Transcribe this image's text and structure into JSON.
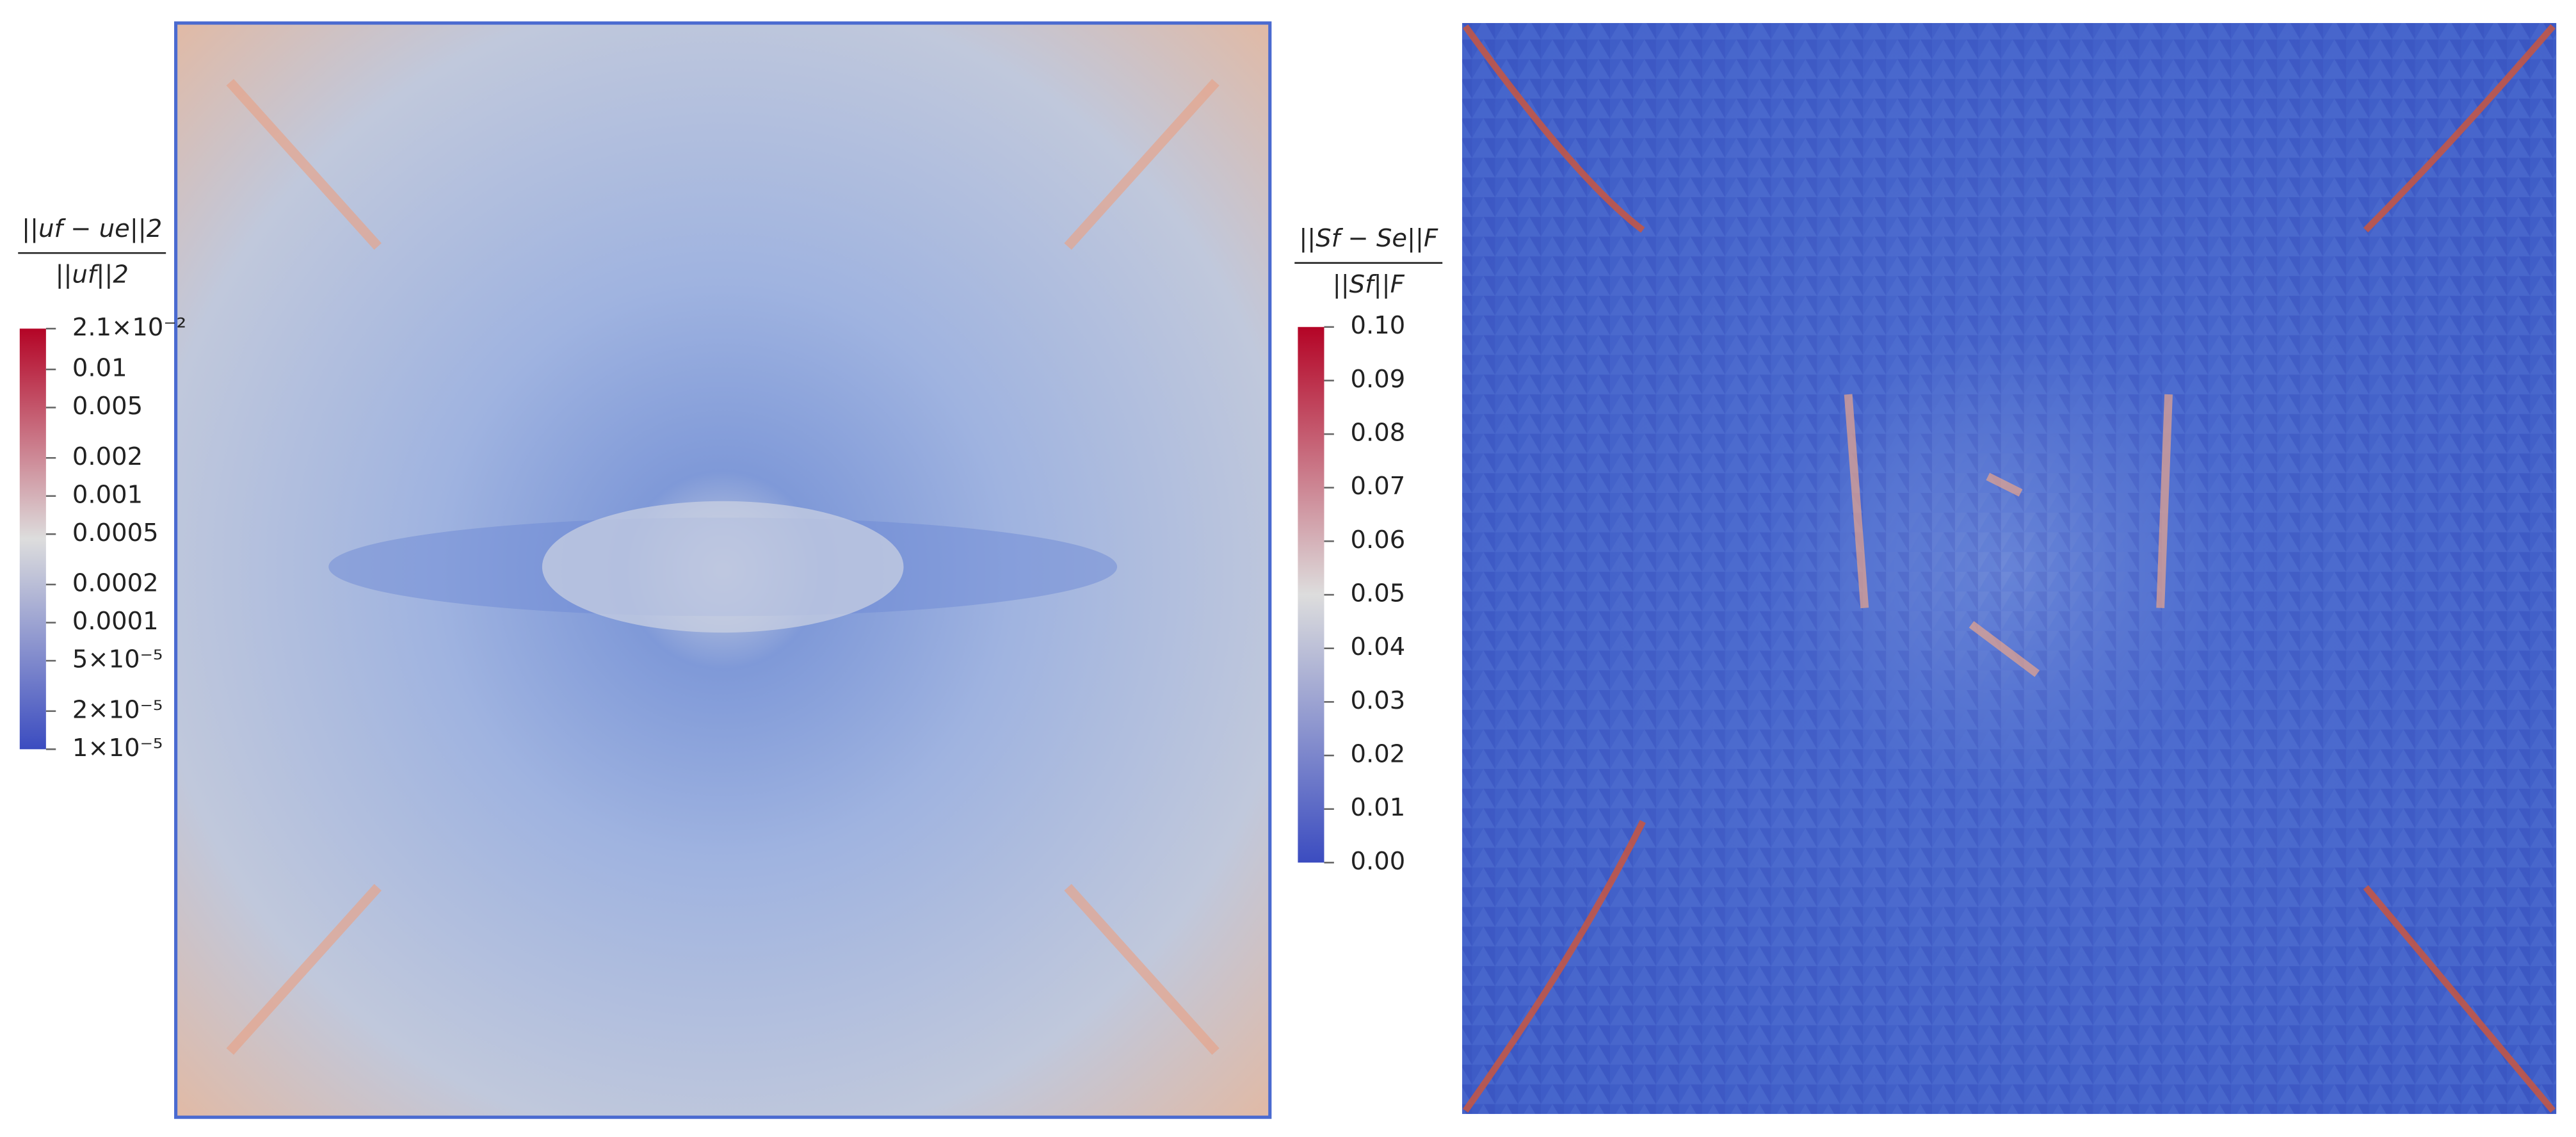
{
  "chart_data": [
    {
      "type": "heatmap",
      "colorbar_label": {
        "numerator": "||uf − ue||2",
        "denominator": "||uf||2"
      },
      "log": true,
      "zlim": [
        1e-05,
        0.021
      ],
      "zticks": [
        {
          "value": 0.021,
          "label": "2.1×10⁻²"
        },
        0.01,
        0.005,
        0.002,
        0.001,
        0.0005,
        0.0002,
        0.0001,
        {
          "value": 5e-05,
          "label": "5×10⁻⁵"
        },
        {
          "value": 2e-05,
          "label": "2×10⁻⁵"
        },
        {
          "value": 1e-05,
          "label": "1×10⁻⁵"
        }
      ],
      "colors": [
        "#3b4cc0",
        "#dddddd",
        "#b40426"
      ]
    },
    {
      "type": "heatmap",
      "colorbar_label": {
        "numerator": "||Sf − Se||F",
        "denominator": "||Sf||F"
      },
      "log": false,
      "zlim": [
        0,
        0.1
      ],
      "zticks": [
        {
          "value": 0,
          "label": "0.00"
        },
        0.01,
        0.02,
        0.03,
        0.04,
        0.05,
        0.06,
        0.07,
        0.08,
        0.09,
        {
          "value": 0.1,
          "label": "0.10"
        }
      ],
      "colors": [
        "#3b4cc0",
        "#dddddd",
        "#b40426"
      ]
    }
  ]
}
